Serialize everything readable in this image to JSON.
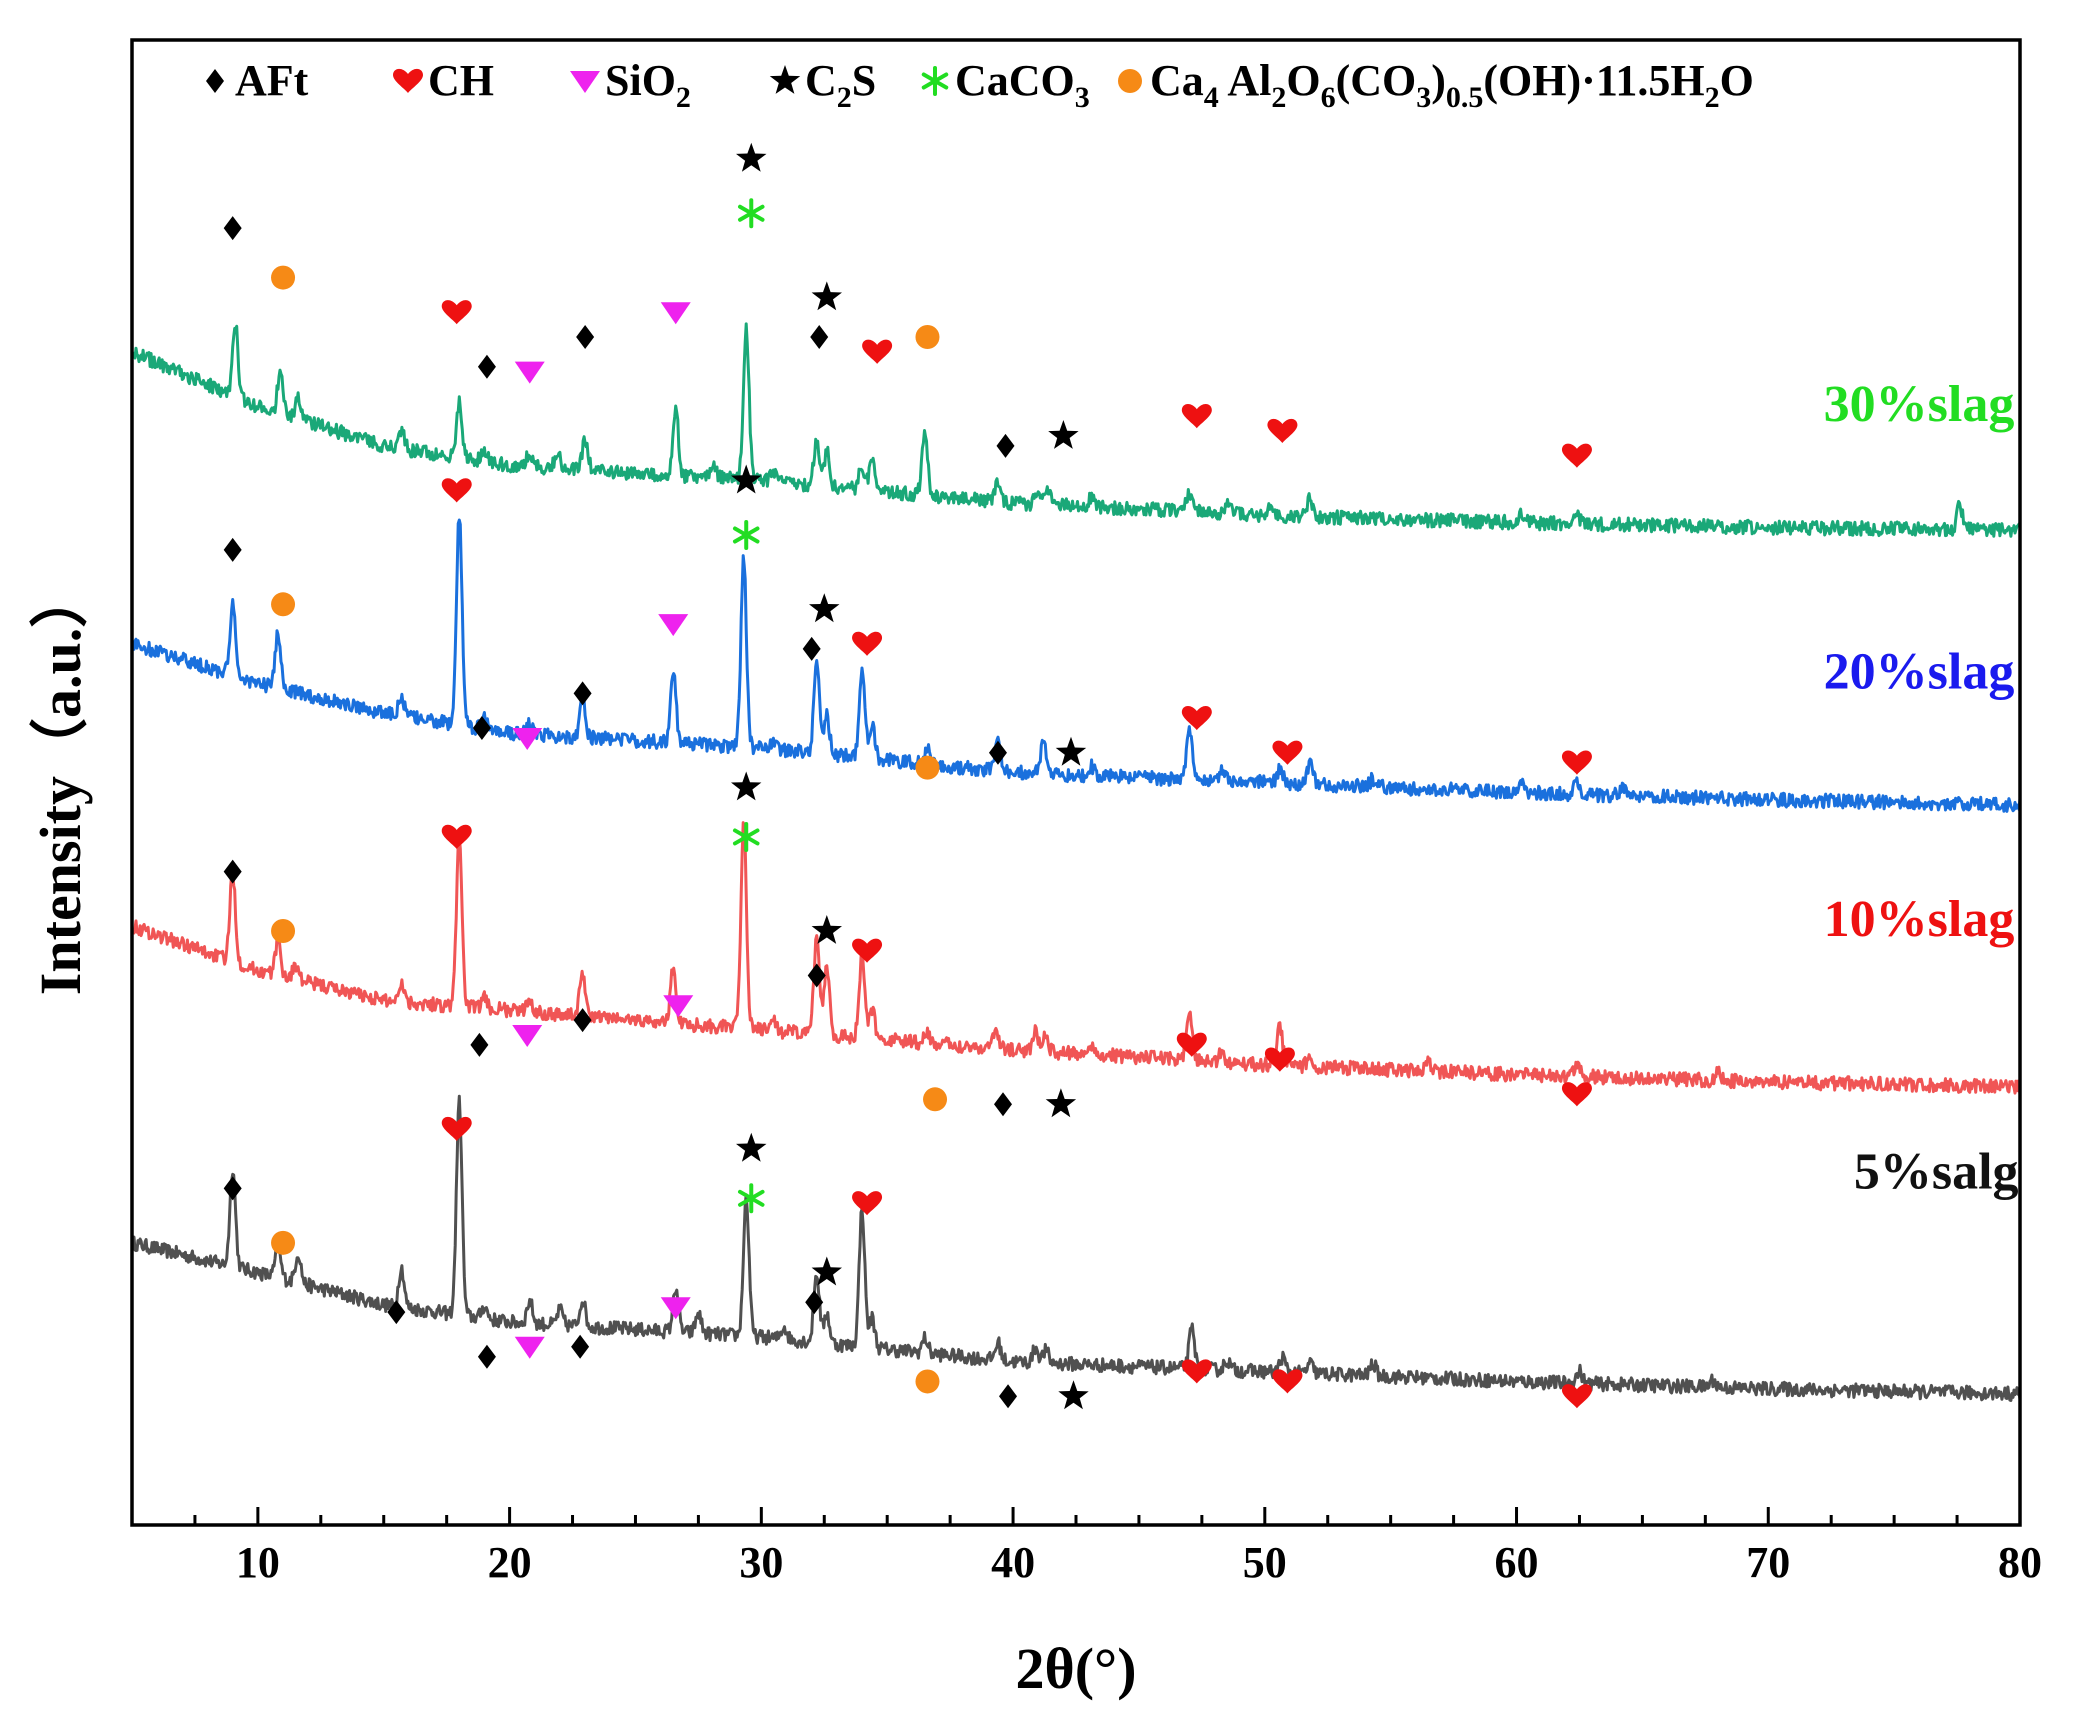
{
  "chart_data": {
    "type": "line",
    "title": "",
    "xlabel": "2θ(°)",
    "ylabel": "Intensity（a.u.）",
    "xlim": [
      5,
      80
    ],
    "xticks": [
      10,
      20,
      30,
      40,
      50,
      60,
      70,
      80
    ],
    "grid": false,
    "colors": {
      "30%slag": "#1aa878",
      "20%slag": "#1a70dd",
      "10%slag": "#f05555",
      "5%salg": "#505050",
      "AFt": "#000000",
      "CH": "#ee1111",
      "SiO2": "#ee22ee",
      "C2S": "#000000",
      "CaCO3": "#22dd22",
      "Ca4": "#f68a16",
      "label_30": "#22dd22",
      "label_20": "#1a1aee",
      "label_10": "#ee1111",
      "label_5": "#111111"
    },
    "legend": [
      {
        "key": "AFt",
        "marker": "diamond",
        "text": "AFt"
      },
      {
        "key": "CH",
        "marker": "heart",
        "text": "CH"
      },
      {
        "key": "SiO2",
        "marker": "triangle-down",
        "text": "SiO",
        "sub": "2"
      },
      {
        "key": "C2S",
        "marker": "star",
        "text": "C",
        "sub": "2",
        "tail": "S"
      },
      {
        "key": "CaCO3",
        "marker": "asterisk",
        "text": "CaCO",
        "sub": "3"
      },
      {
        "key": "Ca4",
        "marker": "circle",
        "formula": [
          {
            "t": "Ca"
          },
          {
            "t": "4",
            "s": 1
          },
          {
            "t": " Al"
          },
          {
            "t": "2",
            "s": 1
          },
          {
            "t": "O"
          },
          {
            "t": "6",
            "s": 1
          },
          {
            "t": "(CO"
          },
          {
            "t": "3",
            "s": 1
          },
          {
            "t": ")"
          },
          {
            "t": "0.5",
            "s": 1
          },
          {
            "t": "(OH)·11.5H"
          },
          {
            "t": "2",
            "s": 1
          },
          {
            "t": "O"
          }
        ]
      }
    ],
    "series": [
      {
        "name": "5%salg",
        "baseline": [
          [
            5,
            37.0
          ],
          [
            10,
            31.0
          ],
          [
            15,
            24.5
          ],
          [
            20,
            21.0
          ],
          [
            30,
            18.0
          ],
          [
            40,
            13.0
          ],
          [
            50,
            11.0
          ],
          [
            60,
            9.0
          ],
          [
            70,
            7.5
          ],
          [
            80,
            6.5
          ]
        ],
        "peaks": [
          [
            9.0,
            20
          ],
          [
            10.8,
            6
          ],
          [
            11.6,
            6
          ],
          [
            15.7,
            8
          ],
          [
            18.0,
            43
          ],
          [
            19.0,
            2.5
          ],
          [
            20.8,
            4.5
          ],
          [
            22.0,
            3
          ],
          [
            22.9,
            5.5
          ],
          [
            26.6,
            9
          ],
          [
            27.5,
            4
          ],
          [
            29.4,
            28
          ],
          [
            30.9,
            2.5
          ],
          [
            32.2,
            14
          ],
          [
            32.6,
            6
          ],
          [
            34.0,
            28
          ],
          [
            34.4,
            6
          ],
          [
            36.5,
            3
          ],
          [
            39.4,
            3.5
          ],
          [
            40.9,
            3
          ],
          [
            41.3,
            2.5
          ],
          [
            47.1,
            8
          ],
          [
            48.5,
            2
          ],
          [
            50.7,
            3
          ],
          [
            51.8,
            2
          ],
          [
            54.3,
            2.5
          ],
          [
            62.5,
            2.5
          ],
          [
            67.8,
            1.5
          ]
        ]
      },
      {
        "name": "10%slag",
        "baseline": [
          [
            5,
            101.0
          ],
          [
            10,
            92.0
          ],
          [
            15,
            86.0
          ],
          [
            20,
            84.0
          ],
          [
            30,
            80.0
          ],
          [
            40,
            76.0
          ],
          [
            50,
            73.0
          ],
          [
            60,
            71.0
          ],
          [
            70,
            69.5
          ],
          [
            80,
            68.5
          ]
        ],
        "peaks": [
          [
            9.0,
            18
          ],
          [
            10.8,
            7
          ],
          [
            11.5,
            3
          ],
          [
            15.7,
            4
          ],
          [
            18.0,
            34
          ],
          [
            19.0,
            2
          ],
          [
            20.8,
            2.5
          ],
          [
            22.9,
            9
          ],
          [
            26.5,
            11
          ],
          [
            29.3,
            42
          ],
          [
            30.5,
            2
          ],
          [
            32.2,
            20
          ],
          [
            32.6,
            14
          ],
          [
            34.0,
            16
          ],
          [
            34.4,
            6
          ],
          [
            36.6,
            2
          ],
          [
            39.3,
            4
          ],
          [
            40.9,
            4
          ],
          [
            41.3,
            3
          ],
          [
            43.1,
            2
          ],
          [
            47.0,
            9
          ],
          [
            48.3,
            2
          ],
          [
            50.6,
            8
          ],
          [
            51.8,
            2
          ],
          [
            56.5,
            1.5
          ],
          [
            62.4,
            2.5
          ],
          [
            68.0,
            1.5
          ]
        ]
      },
      {
        "name": "20%slag",
        "baseline": [
          [
            5,
            158.0
          ],
          [
            10,
            150.0
          ],
          [
            15,
            144.0
          ],
          [
            20,
            140.0
          ],
          [
            30,
            137.0
          ],
          [
            40,
            132.0
          ],
          [
            50,
            130.0
          ],
          [
            60,
            128.0
          ],
          [
            70,
            126.5
          ],
          [
            80,
            125.5
          ]
        ],
        "peaks": [
          [
            9.0,
            14
          ],
          [
            10.8,
            11
          ],
          [
            15.7,
            4
          ],
          [
            18.0,
            42
          ],
          [
            19.0,
            2.5
          ],
          [
            20.8,
            2
          ],
          [
            22.9,
            8
          ],
          [
            26.5,
            14
          ],
          [
            29.3,
            38
          ],
          [
            30.5,
            2
          ],
          [
            32.2,
            18
          ],
          [
            32.6,
            8
          ],
          [
            34.0,
            18
          ],
          [
            34.4,
            7
          ],
          [
            36.6,
            3
          ],
          [
            39.4,
            6
          ],
          [
            41.2,
            6
          ],
          [
            43.1,
            2
          ],
          [
            47.0,
            11
          ],
          [
            48.3,
            2.5
          ],
          [
            50.6,
            3
          ],
          [
            51.8,
            4
          ],
          [
            54.3,
            1.5
          ],
          [
            60.2,
            1.5
          ],
          [
            62.4,
            2.5
          ],
          [
            64.2,
            1.5
          ]
        ]
      },
      {
        "name": "30%slag",
        "baseline": [
          [
            5,
            217.0
          ],
          [
            10,
            206.0
          ],
          [
            15,
            198.0
          ],
          [
            20,
            194.0
          ],
          [
            30,
            191.0
          ],
          [
            40,
            186.5
          ],
          [
            50,
            184.0
          ],
          [
            60,
            182.5
          ],
          [
            70,
            181.5
          ],
          [
            80,
            181.0
          ]
        ],
        "peaks": [
          [
            9.1,
            15
          ],
          [
            10.9,
            9
          ],
          [
            11.6,
            4
          ],
          [
            15.7,
            4
          ],
          [
            18.0,
            11
          ],
          [
            19.0,
            2.5
          ],
          [
            20.8,
            3
          ],
          [
            21.9,
            3
          ],
          [
            23.0,
            6
          ],
          [
            26.6,
            13
          ],
          [
            28.1,
            2
          ],
          [
            29.4,
            31
          ],
          [
            30.5,
            2
          ],
          [
            32.2,
            9
          ],
          [
            32.6,
            7
          ],
          [
            34.0,
            5
          ],
          [
            34.4,
            6
          ],
          [
            36.5,
            13
          ],
          [
            39.4,
            3.5
          ],
          [
            41.0,
            3
          ],
          [
            41.4,
            3.5
          ],
          [
            43.1,
            2
          ],
          [
            47.0,
            4
          ],
          [
            48.5,
            2
          ],
          [
            50.2,
            2
          ],
          [
            51.8,
            3.5
          ],
          [
            60.2,
            1.5
          ],
          [
            62.4,
            2
          ],
          [
            77.6,
            5
          ]
        ]
      }
    ],
    "series_labels": [
      {
        "text": "30%slag",
        "colorKey": "label_30",
        "x": 72.2,
        "y": 203
      },
      {
        "text": "20%slag",
        "colorKey": "label_20",
        "x": 72.2,
        "y": 149
      },
      {
        "text": "10%slag",
        "colorKey": "label_10",
        "x": 72.2,
        "y": 99
      },
      {
        "text": "5%salg",
        "colorKey": "label_5",
        "x": 73.4,
        "y": 48
      }
    ],
    "annotations": [
      {
        "m": "diamond",
        "x": 9.0,
        "y": 242
      },
      {
        "m": "circle",
        "x": 11.0,
        "y": 232
      },
      {
        "m": "heart",
        "x": 17.9,
        "y": 225
      },
      {
        "m": "diamond",
        "x": 19.1,
        "y": 214
      },
      {
        "m": "triangle-down",
        "x": 20.8,
        "y": 213
      },
      {
        "m": "diamond",
        "x": 23.0,
        "y": 220
      },
      {
        "m": "triangle-down",
        "x": 26.6,
        "y": 225
      },
      {
        "m": "star",
        "x": 29.6,
        "y": 256
      },
      {
        "m": "asterisk",
        "x": 29.6,
        "y": 245
      },
      {
        "m": "star",
        "x": 32.6,
        "y": 228
      },
      {
        "m": "diamond",
        "x": 32.3,
        "y": 220
      },
      {
        "m": "heart",
        "x": 34.6,
        "y": 217
      },
      {
        "m": "circle",
        "x": 36.6,
        "y": 220
      },
      {
        "m": "diamond",
        "x": 39.7,
        "y": 198
      },
      {
        "m": "star",
        "x": 42.0,
        "y": 200
      },
      {
        "m": "heart",
        "x": 47.3,
        "y": 204
      },
      {
        "m": "heart",
        "x": 50.7,
        "y": 201
      },
      {
        "m": "heart",
        "x": 62.4,
        "y": 196
      },
      {
        "m": "heart",
        "x": 17.9,
        "y": 189
      },
      {
        "m": "diamond",
        "x": 9.0,
        "y": 177
      },
      {
        "m": "circle",
        "x": 11.0,
        "y": 166
      },
      {
        "m": "diamond",
        "x": 18.9,
        "y": 141
      },
      {
        "m": "triangle-down",
        "x": 20.7,
        "y": 139
      },
      {
        "m": "diamond",
        "x": 22.9,
        "y": 148
      },
      {
        "m": "triangle-down",
        "x": 26.5,
        "y": 162
      },
      {
        "m": "star",
        "x": 29.4,
        "y": 191
      },
      {
        "m": "asterisk",
        "x": 29.4,
        "y": 180
      },
      {
        "m": "star",
        "x": 32.5,
        "y": 165
      },
      {
        "m": "diamond",
        "x": 32.0,
        "y": 157
      },
      {
        "m": "heart",
        "x": 34.2,
        "y": 158
      },
      {
        "m": "circle",
        "x": 36.6,
        "y": 133
      },
      {
        "m": "diamond",
        "x": 39.4,
        "y": 136
      },
      {
        "m": "star",
        "x": 42.3,
        "y": 136
      },
      {
        "m": "heart",
        "x": 47.3,
        "y": 143
      },
      {
        "m": "heart",
        "x": 50.9,
        "y": 136
      },
      {
        "m": "heart",
        "x": 62.4,
        "y": 134
      },
      {
        "m": "heart",
        "x": 17.9,
        "y": 119
      },
      {
        "m": "diamond",
        "x": 9.0,
        "y": 112
      },
      {
        "m": "circle",
        "x": 11.0,
        "y": 100
      },
      {
        "m": "diamond",
        "x": 18.8,
        "y": 77
      },
      {
        "m": "triangle-down",
        "x": 20.7,
        "y": 79
      },
      {
        "m": "diamond",
        "x": 22.9,
        "y": 82
      },
      {
        "m": "triangle-down",
        "x": 26.7,
        "y": 85
      },
      {
        "m": "star",
        "x": 29.4,
        "y": 129
      },
      {
        "m": "asterisk",
        "x": 29.4,
        "y": 119
      },
      {
        "m": "star",
        "x": 32.6,
        "y": 100
      },
      {
        "m": "diamond",
        "x": 32.2,
        "y": 91
      },
      {
        "m": "heart",
        "x": 34.2,
        "y": 96
      },
      {
        "m": "circle",
        "x": 36.9,
        "y": 66
      },
      {
        "m": "diamond",
        "x": 39.6,
        "y": 65
      },
      {
        "m": "star",
        "x": 41.9,
        "y": 65
      },
      {
        "m": "heart",
        "x": 47.1,
        "y": 77
      },
      {
        "m": "heart",
        "x": 50.6,
        "y": 74
      },
      {
        "m": "heart",
        "x": 62.4,
        "y": 67
      },
      {
        "m": "heart",
        "x": 17.9,
        "y": 60
      },
      {
        "m": "diamond",
        "x": 9.0,
        "y": 48
      },
      {
        "m": "circle",
        "x": 11.0,
        "y": 37
      },
      {
        "m": "diamond",
        "x": 15.5,
        "y": 23
      },
      {
        "m": "diamond",
        "x": 19.1,
        "y": 14
      },
      {
        "m": "triangle-down",
        "x": 20.8,
        "y": 16
      },
      {
        "m": "diamond",
        "x": 22.8,
        "y": 16
      },
      {
        "m": "triangle-down",
        "x": 26.6,
        "y": 24
      },
      {
        "m": "star",
        "x": 29.6,
        "y": 56
      },
      {
        "m": "asterisk",
        "x": 29.6,
        "y": 46
      },
      {
        "m": "star",
        "x": 32.6,
        "y": 31
      },
      {
        "m": "diamond",
        "x": 32.1,
        "y": 25
      },
      {
        "m": "heart",
        "x": 34.2,
        "y": 45
      },
      {
        "m": "circle",
        "x": 36.6,
        "y": 9
      },
      {
        "m": "diamond",
        "x": 39.8,
        "y": 6
      },
      {
        "m": "star",
        "x": 42.4,
        "y": 6
      },
      {
        "m": "heart",
        "x": 47.3,
        "y": 11
      },
      {
        "m": "heart",
        "x": 50.9,
        "y": 9
      },
      {
        "m": "heart",
        "x": 62.4,
        "y": 6
      }
    ],
    "ylim": [
      -20,
      280
    ]
  }
}
